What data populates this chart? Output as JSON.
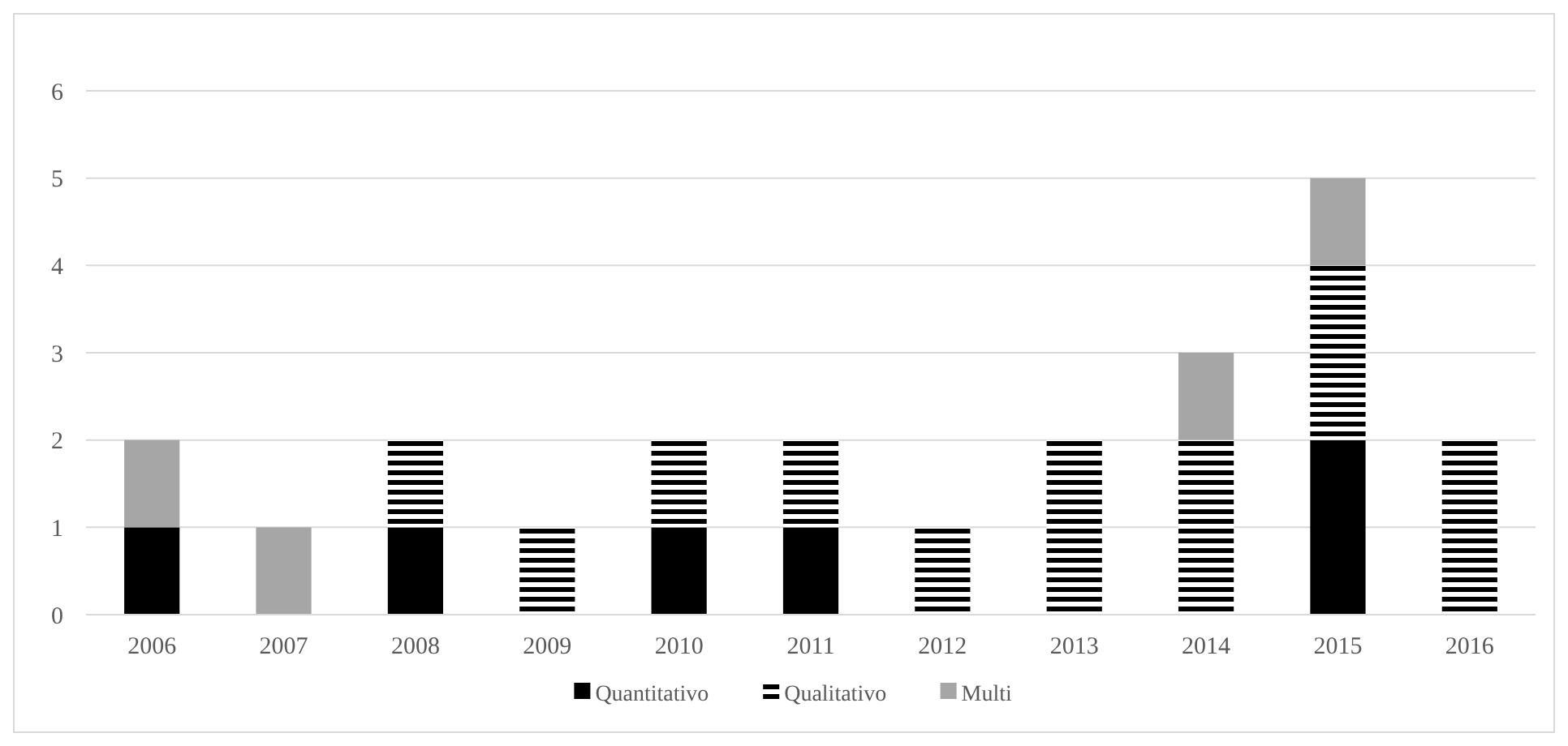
{
  "chart_data": {
    "type": "bar",
    "stacked": true,
    "categories": [
      "2006",
      "2007",
      "2008",
      "2009",
      "2010",
      "2011",
      "2012",
      "2013",
      "2014",
      "2015",
      "2016"
    ],
    "series": [
      {
        "name": "Quantitativo",
        "color": "#000000",
        "values": [
          1,
          0,
          1,
          0,
          1,
          1,
          0,
          0,
          0,
          2,
          0
        ]
      },
      {
        "name": "Qualitativo",
        "color": "#000000",
        "values": [
          0,
          0,
          1,
          1,
          1,
          1,
          1,
          2,
          2,
          2,
          2
        ]
      },
      {
        "name": "Multi",
        "color": "#a6a6a6",
        "values": [
          1,
          1,
          0,
          0,
          0,
          0,
          0,
          0,
          1,
          1,
          0
        ]
      }
    ],
    "ylim": [
      0,
      6
    ],
    "yticks": [
      0,
      1,
      2,
      3,
      4,
      5,
      6
    ],
    "grid": "y",
    "legend": "bottom"
  }
}
